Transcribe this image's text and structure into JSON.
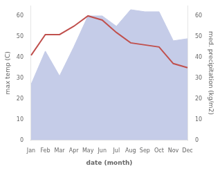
{
  "chart_data": {
    "type": "line",
    "categories": [
      "Jan",
      "Feb",
      "Mar",
      "Apr",
      "May",
      "Jun",
      "Jul",
      "Aug",
      "Sep",
      "Oct",
      "Nov",
      "Dec"
    ],
    "series": [
      {
        "type": "area",
        "color": "#c5cce8",
        "values": [
          27,
          43,
          31,
          45,
          60,
          60,
          55,
          63,
          62,
          62,
          48,
          49
        ]
      },
      {
        "type": "line",
        "color": "#c0504d",
        "values": [
          41,
          51,
          51,
          55,
          60,
          58,
          52,
          47,
          46,
          45,
          37,
          35
        ]
      }
    ],
    "xlabel": "date (month)",
    "ylabel": "max temp (C)",
    "y2label": "med. precipitation (kg/m2)",
    "ylim": [
      0,
      65
    ],
    "yticks": [
      0,
      10,
      20,
      30,
      40,
      50,
      60
    ],
    "y2lim": [
      0,
      65
    ],
    "y2ticks": [
      0,
      10,
      20,
      30,
      40,
      50,
      60
    ],
    "grid": false
  }
}
